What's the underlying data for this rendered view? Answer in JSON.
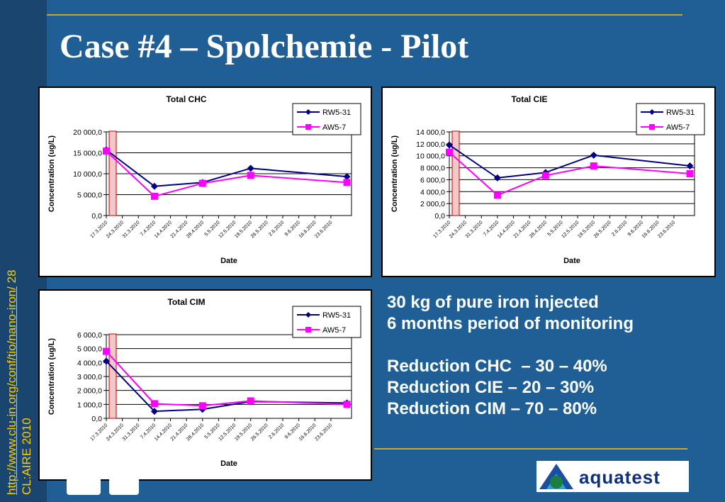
{
  "slide": {
    "title": "Case #4 – Spolchemie - Pilot",
    "side_link": "http://www.clu-in.org/conf/tio/nano-iron/",
    "page_number": "28",
    "side_footer": "CL:AIRE 2010",
    "notes": [
      "30 kg of pure iron injected",
      "6 months period of monitoring",
      "",
      "Reduction CHC  – 30 – 40%",
      "Reduction CIE – 20 – 30%",
      "Reduction CIM – 70 – 80%"
    ],
    "logo_text": "aquatest",
    "colors": {
      "background": "#1f5f95",
      "rule": "#c8a830",
      "link": "#ffcc00",
      "rw_series": "#000080",
      "aw_series": "#ff00ff",
      "injection_marker": "#f4c8c8"
    }
  },
  "chart_data": [
    {
      "type": "line",
      "title": "Total CHC",
      "xlabel": "Date",
      "ylabel": "Concentration (ug/L)",
      "x_ticks": [
        "17.3.2010",
        "24.3.2010",
        "31.3.2010",
        "7.4.2010",
        "14.4.2010",
        "21.4.2010",
        "28.4.2010",
        "5.5.2010",
        "12.5.2010",
        "19.5.2010",
        "26.5.2010",
        "2.6.2010",
        "9.6.2010",
        "16.6.2010",
        "23.6.2010"
      ],
      "y_ticks": [
        "0,0",
        "5 000,0",
        "10 000,0",
        "15 000,0",
        "20 000,0"
      ],
      "ylim": [
        0,
        20000
      ],
      "grid": true,
      "legend_position": "top-right",
      "injection_date": "17.3.2010",
      "series": [
        {
          "name": "RW5-31",
          "color": "#000080",
          "marker": "diamond",
          "points": [
            [
              "17.3.2010",
              15700
            ],
            [
              "7.4.2010",
              7000
            ],
            [
              "28.4.2010",
              7900
            ],
            [
              "19.5.2010",
              11300
            ],
            [
              "30.6.2010",
              9300
            ]
          ]
        },
        {
          "name": "AW5-7",
          "color": "#ff00ff",
          "marker": "square",
          "points": [
            [
              "17.3.2010",
              15400
            ],
            [
              "7.4.2010",
              4600
            ],
            [
              "28.4.2010",
              7700
            ],
            [
              "19.5.2010",
              9600
            ],
            [
              "30.6.2010",
              7900
            ]
          ]
        }
      ]
    },
    {
      "type": "line",
      "title": "Total CIE",
      "xlabel": "Date",
      "ylabel": "Concentration (ug/L)",
      "x_ticks": [
        "17.3.2010",
        "24.3.2010",
        "31.3.2010",
        "7.4.2010",
        "14.4.2010",
        "21.4.2010",
        "28.4.2010",
        "5.5.2010",
        "12.5.2010",
        "19.5.2010",
        "26.5.2010",
        "2.6.2010",
        "9.6.2010",
        "16.6.2010",
        "23.6.2010"
      ],
      "y_ticks": [
        "0,0",
        "2 000,0",
        "4 000,0",
        "6 000,0",
        "8 000,0",
        "10 000,0",
        "12 000,0",
        "14 000,0"
      ],
      "ylim": [
        0,
        14000
      ],
      "grid": true,
      "legend_position": "top-right",
      "injection_date": "17.3.2010",
      "series": [
        {
          "name": "RW5-31",
          "color": "#000080",
          "marker": "diamond",
          "points": [
            [
              "17.3.2010",
              11800
            ],
            [
              "7.4.2010",
              6300
            ],
            [
              "28.4.2010",
              7200
            ],
            [
              "19.5.2010",
              10100
            ],
            [
              "30.6.2010",
              8300
            ]
          ]
        },
        {
          "name": "AW5-7",
          "color": "#ff00ff",
          "marker": "square",
          "points": [
            [
              "17.3.2010",
              10600
            ],
            [
              "7.4.2010",
              3400
            ],
            [
              "28.4.2010",
              6700
            ],
            [
              "19.5.2010",
              8300
            ],
            [
              "30.6.2010",
              7000
            ]
          ]
        }
      ]
    },
    {
      "type": "line",
      "title": "Total CIM",
      "xlabel": "Date",
      "ylabel": "Concentration (ug/L)",
      "x_ticks": [
        "17.3.2010",
        "24.3.2010",
        "31.3.2010",
        "7.4.2010",
        "14.4.2010",
        "21.4.2010",
        "28.4.2010",
        "5.5.2010",
        "12.5.2010",
        "19.5.2010",
        "26.5.2010",
        "2.6.2010",
        "9.6.2010",
        "16.6.2010",
        "23.6.2010"
      ],
      "y_ticks": [
        "0,0",
        "1 000,0",
        "2 000,0",
        "3 000,0",
        "4 000,0",
        "5 000,0",
        "6 000,0"
      ],
      "ylim": [
        0,
        6000
      ],
      "grid": true,
      "legend_position": "top-right",
      "injection_date": "17.3.2010",
      "series": [
        {
          "name": "RW5-31",
          "color": "#000080",
          "marker": "diamond",
          "points": [
            [
              "17.3.2010",
              4100
            ],
            [
              "7.4.2010",
              500
            ],
            [
              "28.4.2010",
              650
            ],
            [
              "19.5.2010",
              1200
            ],
            [
              "30.6.2010",
              1100
            ]
          ]
        },
        {
          "name": "AW5-7",
          "color": "#ff00ff",
          "marker": "square",
          "points": [
            [
              "17.3.2010",
              4800
            ],
            [
              "7.4.2010",
              1050
            ],
            [
              "28.4.2010",
              900
            ],
            [
              "19.5.2010",
              1250
            ],
            [
              "30.6.2010",
              1000
            ]
          ]
        }
      ]
    }
  ]
}
